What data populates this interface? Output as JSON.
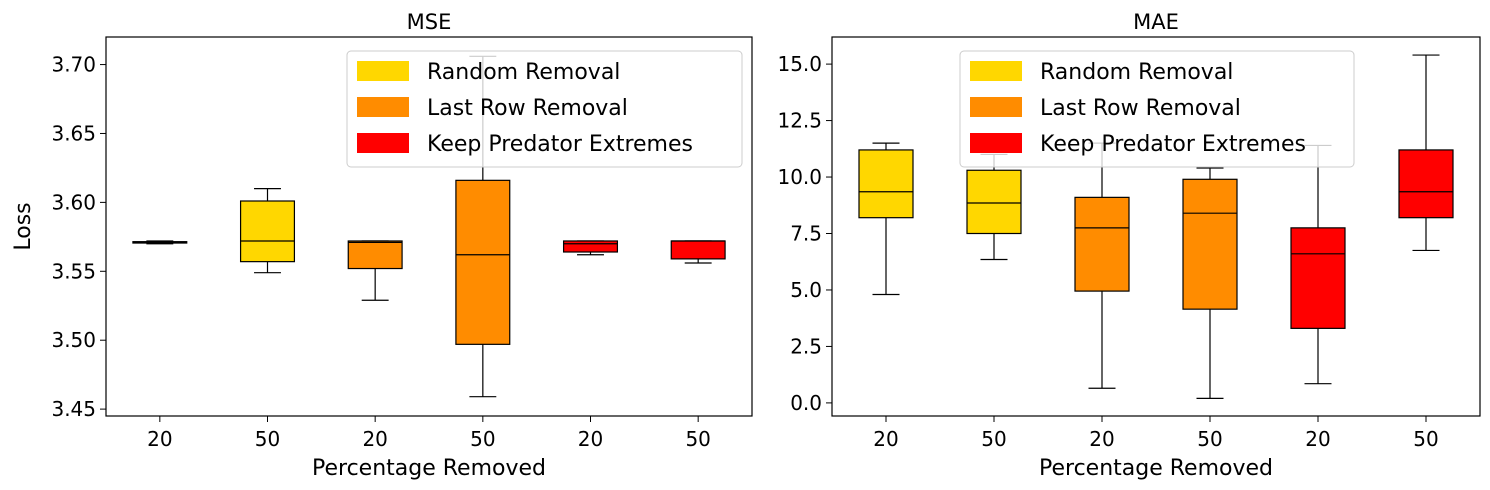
{
  "colors": {
    "random": "#FFD700",
    "last_row": "#FF8C00",
    "keep_predator": "#FF0000",
    "median": "#000000",
    "axis": "#000000"
  },
  "legend": [
    {
      "label": "Random Removal",
      "color": "#FFD700"
    },
    {
      "label": "Last Row Removal",
      "color": "#FF8C00"
    },
    {
      "label": "Keep Predator Extremes",
      "color": "#FF0000"
    }
  ],
  "chart_data": [
    {
      "type": "box",
      "title": "MSE",
      "xlabel": "Percentage Removed",
      "ylabel": "Loss",
      "ylim": [
        3.445,
        3.72
      ],
      "yticks": [
        3.45,
        3.5,
        3.55,
        3.6,
        3.65,
        3.7
      ],
      "ytick_labels": [
        "3.45",
        "3.50",
        "3.55",
        "3.60",
        "3.65",
        "3.70"
      ],
      "legend_position": "top-right",
      "grid": false,
      "boxes": [
        {
          "category": "20",
          "group": "Random Removal",
          "color": "#FFD700",
          "whislo": 3.57,
          "q1": 3.5705,
          "med": 3.571,
          "q3": 3.5715,
          "whishi": 3.572
        },
        {
          "category": "50",
          "group": "Random Removal",
          "color": "#FFD700",
          "whislo": 3.549,
          "q1": 3.557,
          "med": 3.572,
          "q3": 3.601,
          "whishi": 3.61
        },
        {
          "category": "20",
          "group": "Last Row Removal",
          "color": "#FF8C00",
          "whislo": 3.529,
          "q1": 3.552,
          "med": 3.571,
          "q3": 3.572,
          "whishi": 3.572
        },
        {
          "category": "50",
          "group": "Last Row Removal",
          "color": "#FF8C00",
          "whislo": 3.459,
          "q1": 3.497,
          "med": 3.562,
          "q3": 3.616,
          "whishi": 3.706
        },
        {
          "category": "20",
          "group": "Keep Predator Extremes",
          "color": "#FF0000",
          "whislo": 3.562,
          "q1": 3.564,
          "med": 3.57,
          "q3": 3.572,
          "whishi": 3.572
        },
        {
          "category": "50",
          "group": "Keep Predator Extremes",
          "color": "#FF0000",
          "whislo": 3.556,
          "q1": 3.559,
          "med": 3.572,
          "q3": 3.572,
          "whishi": 3.572
        }
      ]
    },
    {
      "type": "box",
      "title": "MAE",
      "xlabel": "Percentage Removed",
      "ylabel": "",
      "ylim": [
        -0.58,
        16.2
      ],
      "yticks": [
        0.0,
        2.5,
        5.0,
        7.5,
        10.0,
        12.5,
        15.0
      ],
      "ytick_labels": [
        "0.0",
        "2.5",
        "5.0",
        "7.5",
        "10.0",
        "12.5",
        "15.0"
      ],
      "legend_position": "top-center",
      "grid": false,
      "boxes": [
        {
          "category": "20",
          "group": "Random Removal",
          "color": "#FFD700",
          "whislo": 4.8,
          "q1": 8.2,
          "med": 9.35,
          "q3": 11.2,
          "whishi": 11.5
        },
        {
          "category": "50",
          "group": "Random Removal",
          "color": "#FFD700",
          "whislo": 6.35,
          "q1": 7.5,
          "med": 8.85,
          "q3": 10.3,
          "whishi": 11.0
        },
        {
          "category": "20",
          "group": "Last Row Removal",
          "color": "#FF8C00",
          "whislo": 0.65,
          "q1": 4.95,
          "med": 7.75,
          "q3": 9.1,
          "whishi": 11.5
        },
        {
          "category": "50",
          "group": "Last Row Removal",
          "color": "#FF8C00",
          "whislo": 0.2,
          "q1": 4.15,
          "med": 8.4,
          "q3": 9.9,
          "whishi": 10.4
        },
        {
          "category": "20",
          "group": "Keep Predator Extremes",
          "color": "#FF0000",
          "whislo": 0.85,
          "q1": 3.3,
          "med": 6.6,
          "q3": 7.75,
          "whishi": 11.4
        },
        {
          "category": "50",
          "group": "Keep Predator Extremes",
          "color": "#FF0000",
          "whislo": 6.75,
          "q1": 8.2,
          "med": 9.35,
          "q3": 11.2,
          "whishi": 15.4
        }
      ]
    }
  ]
}
